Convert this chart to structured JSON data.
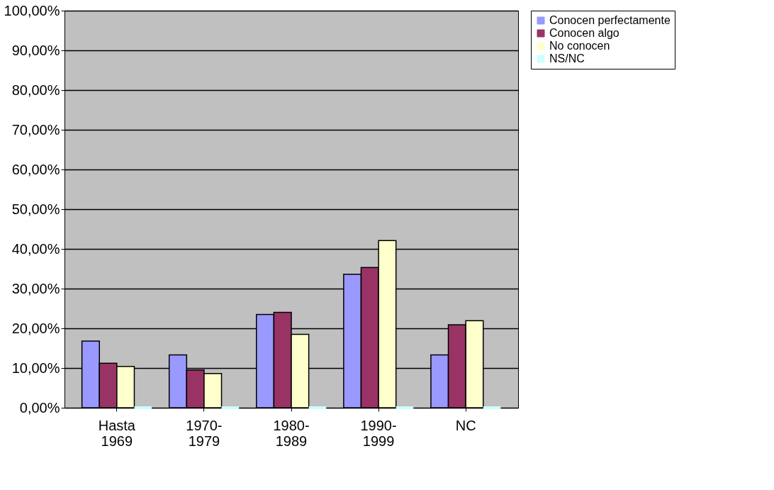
{
  "chart_data": {
    "type": "bar",
    "categories": [
      "Hasta 1969",
      "1970-1979",
      "1980-1989",
      "1990-1999",
      "NC"
    ],
    "series": [
      {
        "name": "Conocen perfectamente",
        "color": "#9999ff",
        "values": [
          16.8,
          13.3,
          23.5,
          33.6,
          13.3
        ]
      },
      {
        "name": "Conocen algo",
        "color": "#993366",
        "values": [
          11.2,
          9.5,
          24.0,
          35.3,
          20.9
        ]
      },
      {
        "name": "No conocen",
        "color": "#ffffcc",
        "values": [
          10.4,
          8.6,
          18.5,
          42.1,
          21.9
        ]
      },
      {
        "name": "NS/NC",
        "color": "#ccffff",
        "values": [
          0,
          0,
          0,
          0,
          0
        ]
      }
    ],
    "ylim": [
      0,
      100
    ],
    "yticks": [
      {
        "value": 0,
        "label": "0,00%"
      },
      {
        "value": 10,
        "label": "10,00%"
      },
      {
        "value": 20,
        "label": "20,00%"
      },
      {
        "value": 30,
        "label": "30,00%"
      },
      {
        "value": 40,
        "label": "40,00%"
      },
      {
        "value": 50,
        "label": "50,00%"
      },
      {
        "value": 60,
        "label": "60,00%"
      },
      {
        "value": 70,
        "label": "70,00%"
      },
      {
        "value": 80,
        "label": "80,00%"
      },
      {
        "value": 90,
        "label": "90,00%"
      },
      {
        "value": 100,
        "label": "100,00%"
      }
    ],
    "grid": "y",
    "legend": "right"
  }
}
